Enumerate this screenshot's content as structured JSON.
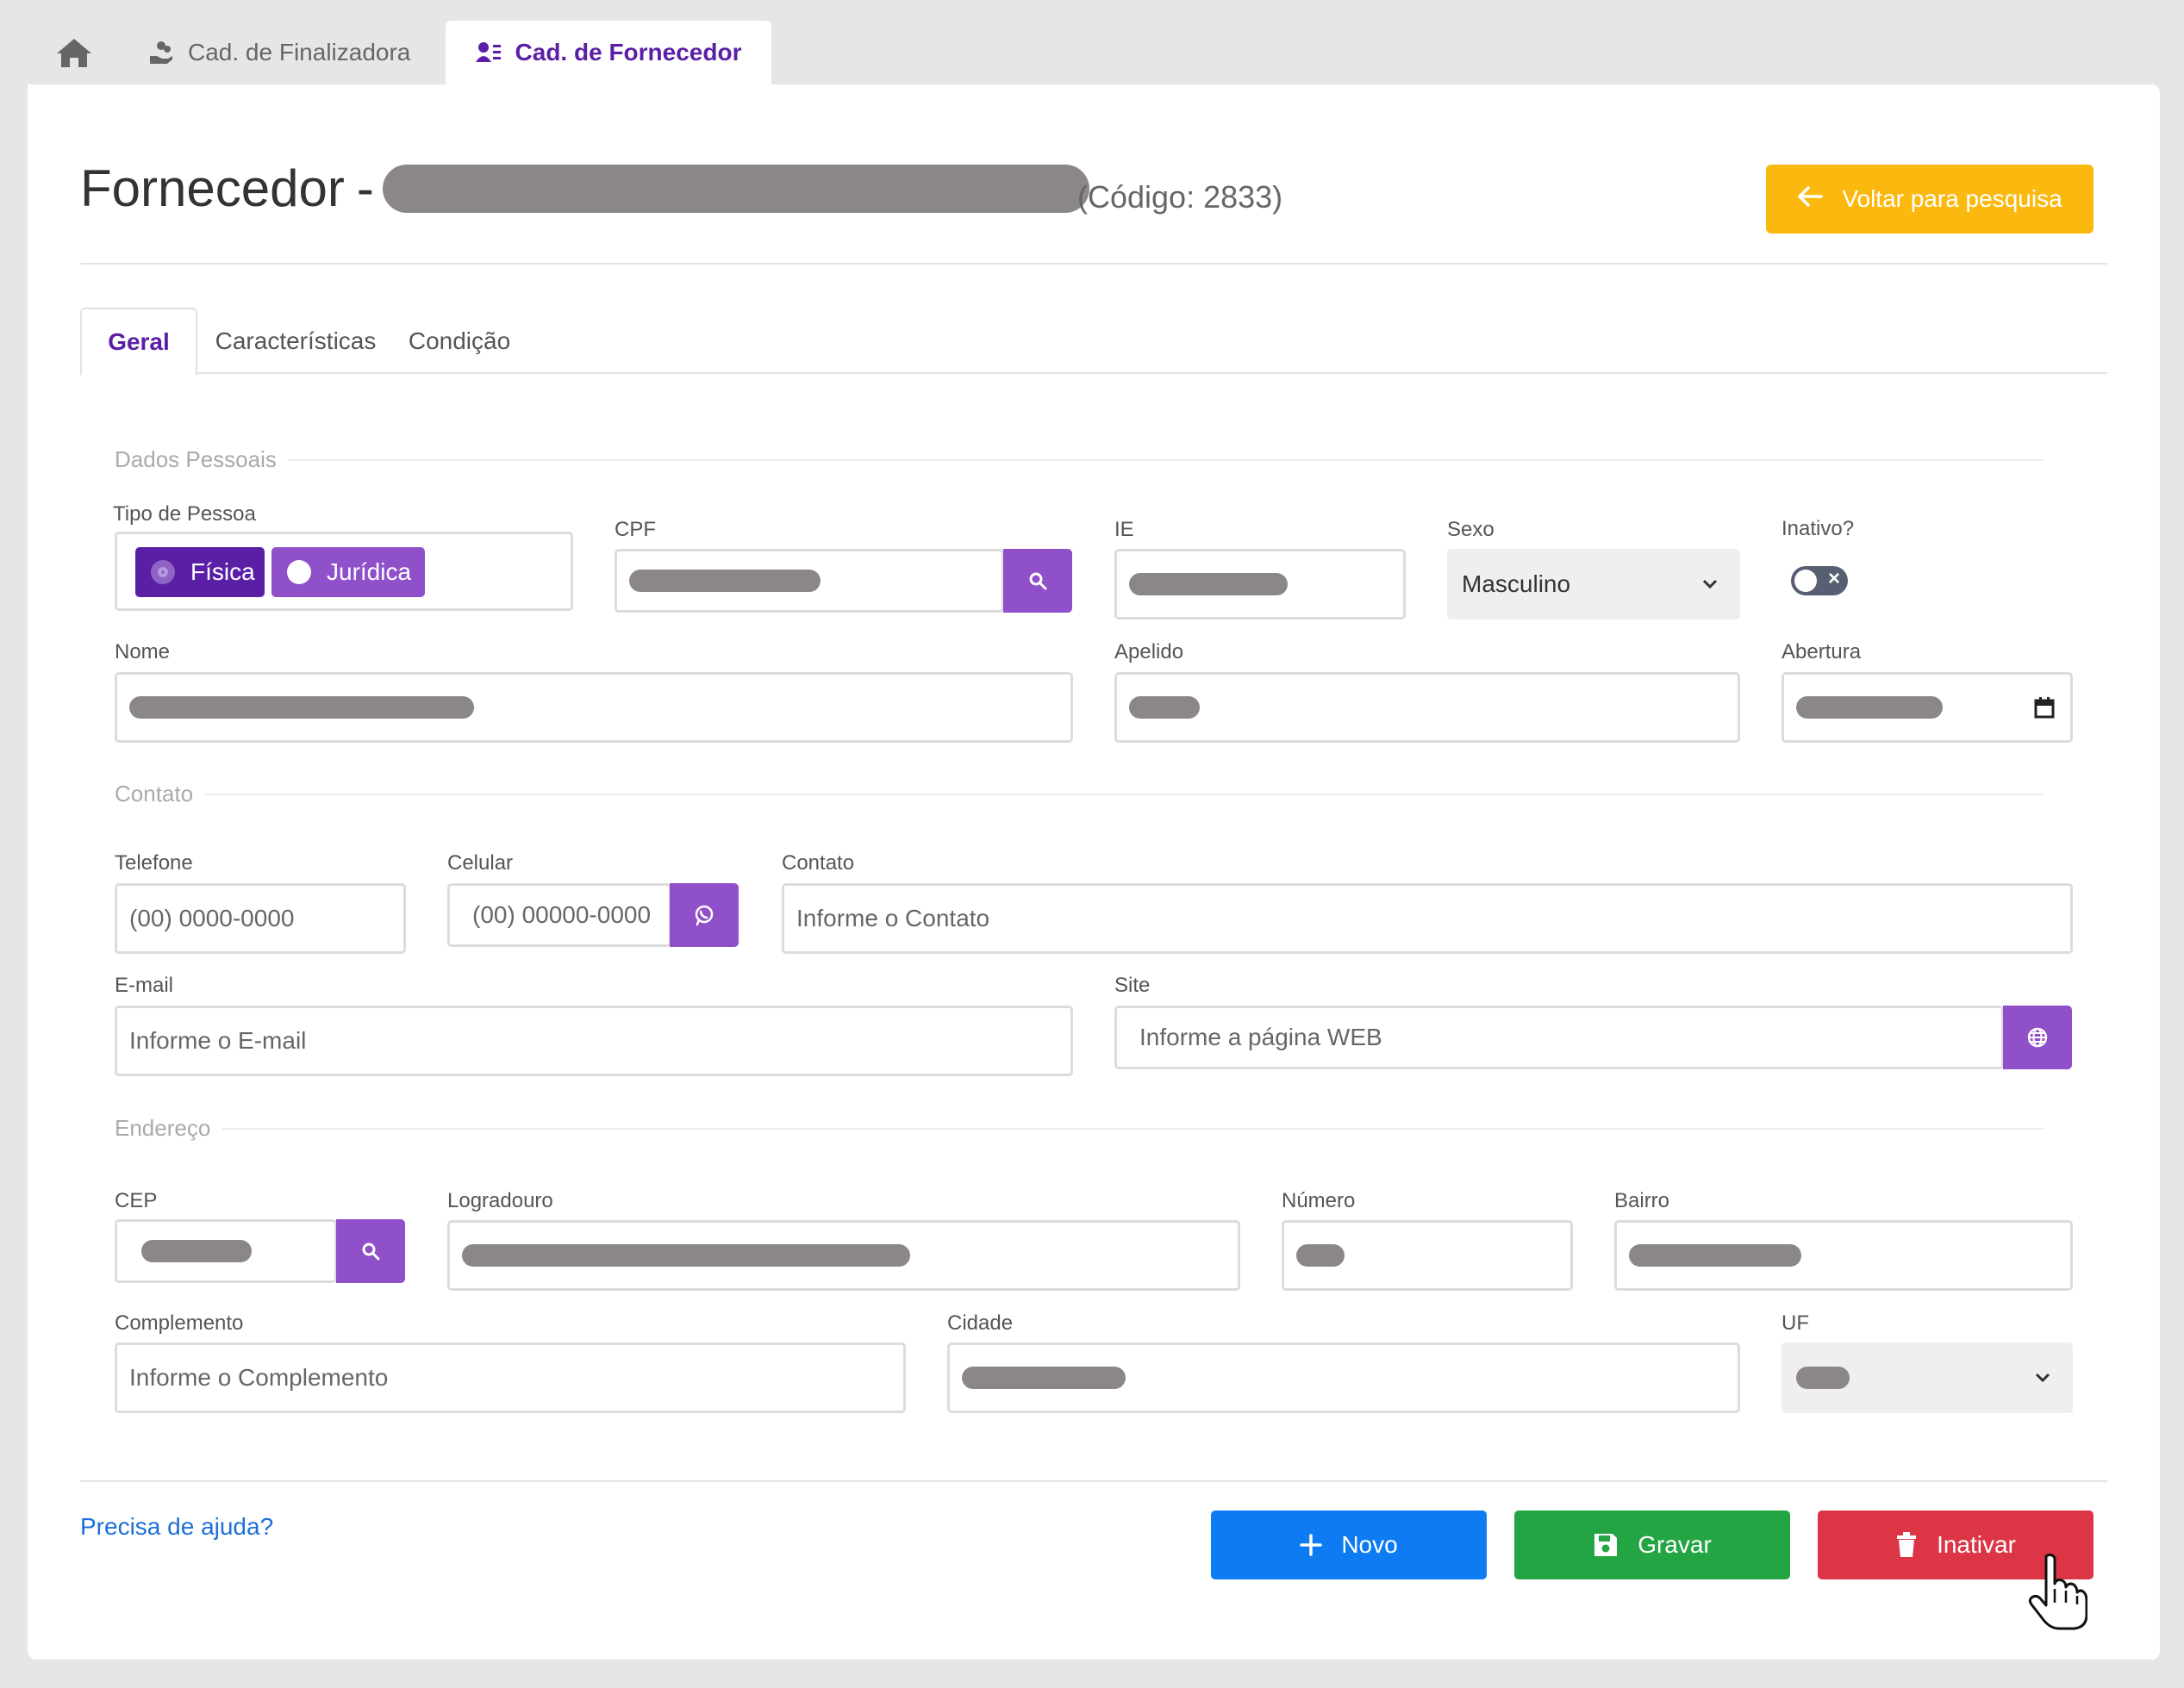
{
  "app_tabs": {
    "home_icon": "home-icon",
    "finalizadora": {
      "label": "Cad. de Finalizadora",
      "icon": "hand-coins-icon"
    },
    "fornecedor": {
      "label": "Cad. de Fornecedor",
      "icon": "user-list-icon"
    }
  },
  "header": {
    "title": "Fornecedor",
    "separator": "-",
    "codigo": "(Código: 2833)",
    "back_button": "Voltar para pesquisa"
  },
  "tabs": [
    {
      "label": "Geral",
      "active": true
    },
    {
      "label": "Características",
      "active": false
    },
    {
      "label": "Condição",
      "active": false
    }
  ],
  "sections": {
    "dados_pessoais": "Dados Pessoais",
    "contato": "Contato",
    "endereco": "Endereço"
  },
  "fields": {
    "tipo_pessoa": {
      "label": "Tipo de Pessoa",
      "options": [
        "Física",
        "Jurídica"
      ],
      "selected": "Física"
    },
    "cpf": {
      "label": "CPF"
    },
    "ie": {
      "label": "IE"
    },
    "sexo": {
      "label": "Sexo",
      "value": "Masculino"
    },
    "inativo": {
      "label": "Inativo?",
      "value": false
    },
    "nome": {
      "label": "Nome"
    },
    "apelido": {
      "label": "Apelido"
    },
    "abertura": {
      "label": "Abertura"
    },
    "telefone": {
      "label": "Telefone",
      "placeholder": "(00) 0000-0000"
    },
    "celular": {
      "label": "Celular",
      "placeholder": "(00) 00000-0000"
    },
    "contato": {
      "label": "Contato",
      "placeholder": "Informe o Contato"
    },
    "email": {
      "label": "E-mail",
      "placeholder": "Informe o E-mail"
    },
    "site": {
      "label": "Site",
      "placeholder": "Informe a página WEB"
    },
    "cep": {
      "label": "CEP"
    },
    "logradouro": {
      "label": "Logradouro"
    },
    "numero": {
      "label": "Número"
    },
    "bairro": {
      "label": "Bairro"
    },
    "complemento": {
      "label": "Complemento",
      "placeholder": "Informe o Complemento"
    },
    "cidade": {
      "label": "Cidade"
    },
    "uf": {
      "label": "UF"
    }
  },
  "footer": {
    "help": "Precisa de ajuda?",
    "novo": "Novo",
    "gravar": "Gravar",
    "inativar": "Inativar"
  },
  "colors": {
    "accent": "#5b1fa6",
    "addon_purple": "#8f50c9",
    "back": "#fbb80f",
    "novo": "#0d7bf2",
    "gravar": "#24a544",
    "inativar": "#dc3646"
  }
}
